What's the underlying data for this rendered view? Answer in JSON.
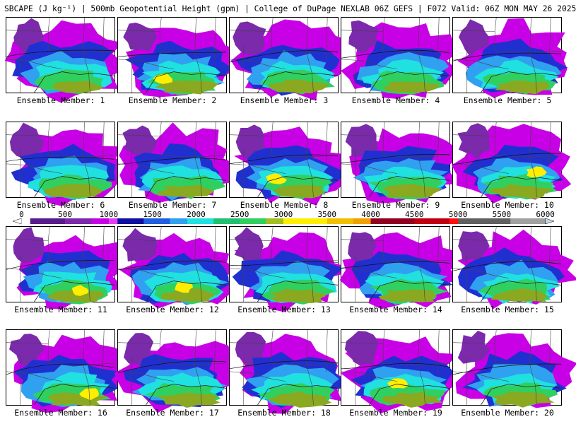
{
  "title": "SBCAPE (J kg⁻¹) | 500mb Geopotential Height (gpm) | College of DuPage NEXLAB 06Z GEFS | F072 Valid: 06Z MON MAY 26 2025",
  "member_label_prefix": "Ensemble Member: ",
  "members": [
    {
      "label": "Ensemble Member: 1"
    },
    {
      "label": "Ensemble Member: 2"
    },
    {
      "label": "Ensemble Member: 3"
    },
    {
      "label": "Ensemble Member: 4"
    },
    {
      "label": "Ensemble Member: 5"
    },
    {
      "label": "Ensemble Member: 6"
    },
    {
      "label": "Ensemble Member: 7"
    },
    {
      "label": "Ensemble Member: 8"
    },
    {
      "label": "Ensemble Member: 9"
    },
    {
      "label": "Ensemble Member: 10"
    },
    {
      "label": "Ensemble Member: 11"
    },
    {
      "label": "Ensemble Member: 12"
    },
    {
      "label": "Ensemble Member: 13"
    },
    {
      "label": "Ensemble Member: 14"
    },
    {
      "label": "Ensemble Member: 15"
    },
    {
      "label": "Ensemble Member: 16"
    },
    {
      "label": "Ensemble Member: 17"
    },
    {
      "label": "Ensemble Member: 18"
    },
    {
      "label": "Ensemble Member: 19"
    },
    {
      "label": "Ensemble Member: 20"
    }
  ],
  "colorbar": {
    "ticks": [
      "0",
      "500",
      "1000",
      "1500",
      "2000",
      "2500",
      "3000",
      "3500",
      "4000",
      "4500",
      "5000",
      "5500",
      "6000"
    ],
    "min": 0,
    "max": 6000,
    "step": 100,
    "colors": {
      "white": "#ffffff",
      "purple_dark": "#5a1c8c",
      "purple": "#7a2aaa",
      "magenta": "#c800e6",
      "blue": "#2030d0",
      "light_blue": "#30a0f0",
      "cyan": "#20e0e0",
      "green": "#30d060",
      "olive": "#8aa820",
      "yellow": "#ffee00",
      "orange": "#f0a000",
      "dark_red": "#900020",
      "red": "#ff1010",
      "gray": "#909090",
      "light_gray": "#c8d8e0"
    }
  }
}
